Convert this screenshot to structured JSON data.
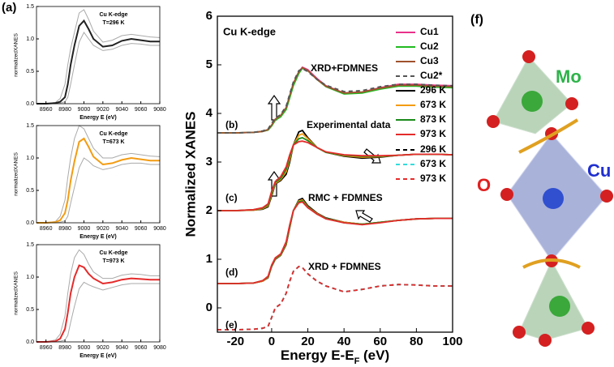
{
  "chart_data": [
    {
      "type": "line",
      "panel_label": "(a)",
      "annotations": [
        "Cu K-edge",
        "T=296 K"
      ],
      "xlabel": "Energy E (eV)",
      "ylabel": "normalizedXANES",
      "x": [
        8950,
        8960,
        8970,
        8975,
        8980,
        8983,
        8986,
        8990,
        8995,
        9000,
        9005,
        9010,
        9020,
        9030,
        9040,
        9050,
        9060,
        9070,
        9080
      ],
      "series": [
        {
          "color": "#aaaaaa",
          "values": [
            0,
            0,
            0.02,
            0.08,
            0.3,
            0.6,
            0.85,
            1.1,
            1.4,
            1.45,
            1.3,
            1.12,
            0.95,
            0.98,
            1.05,
            1.07,
            1.05,
            1.03,
            1.02
          ]
        },
        {
          "color": "#aaaaaa",
          "values": [
            0,
            0,
            0,
            0.01,
            0.03,
            0.1,
            0.3,
            0.6,
            0.95,
            1.1,
            1.0,
            0.9,
            0.82,
            0.84,
            0.9,
            0.93,
            0.92,
            0.9,
            0.9
          ]
        },
        {
          "color": "#222222",
          "values": [
            0,
            0,
            0.01,
            0.03,
            0.1,
            0.3,
            0.6,
            0.9,
            1.2,
            1.28,
            1.15,
            1.0,
            0.88,
            0.9,
            0.97,
            1.0,
            0.98,
            0.96,
            0.96
          ]
        }
      ],
      "xlim": [
        8950,
        9080
      ],
      "xticks": [
        8960,
        8980,
        9000,
        9020,
        9040,
        9060,
        9080
      ],
      "ylim": [
        0,
        1.5
      ],
      "yticks": [
        {
          "value": 0,
          "label": "0.0"
        },
        {
          "value": 0.5,
          "label": "0.5"
        },
        {
          "value": 1,
          "label": "1.0"
        },
        {
          "value": 1.5,
          "label": "1.5"
        }
      ]
    },
    {
      "type": "line",
      "annotations": [
        "Cu K-edge",
        "T=673 K"
      ],
      "xlabel": "Energy E (eV)",
      "ylabel": "normalizedXANES",
      "x": [
        8950,
        8960,
        8970,
        8975,
        8980,
        8983,
        8986,
        8990,
        8995,
        9000,
        9005,
        9010,
        9020,
        9030,
        9040,
        9050,
        9060,
        9070,
        9080
      ],
      "series": [
        {
          "color": "#aaaaaa",
          "values": [
            0,
            0,
            0.02,
            0.1,
            0.35,
            0.7,
            1.0,
            1.3,
            1.5,
            1.45,
            1.3,
            1.15,
            1.0,
            1.0,
            1.05,
            1.07,
            1.05,
            1.03,
            1.02
          ]
        },
        {
          "color": "#aaaaaa",
          "values": [
            0,
            0,
            0,
            0.01,
            0.03,
            0.1,
            0.3,
            0.55,
            0.85,
            1.0,
            0.95,
            0.88,
            0.82,
            0.85,
            0.9,
            0.92,
            0.92,
            0.9,
            0.9
          ]
        },
        {
          "color": "#f39c12",
          "values": [
            0,
            0,
            0.01,
            0.04,
            0.15,
            0.35,
            0.65,
            0.95,
            1.25,
            1.3,
            1.17,
            1.02,
            0.9,
            0.92,
            0.97,
            1.0,
            0.98,
            0.96,
            0.96
          ]
        }
      ],
      "xlim": [
        8950,
        9080
      ],
      "xticks": [
        8960,
        8980,
        9000,
        9020,
        9040,
        9060,
        9080
      ],
      "ylim": [
        0,
        1.5
      ],
      "yticks": [
        {
          "value": 0,
          "label": "0.0"
        },
        {
          "value": 0.5,
          "label": "0.5"
        },
        {
          "value": 1,
          "label": "1.0"
        },
        {
          "value": 1.5,
          "label": "1.5"
        }
      ]
    },
    {
      "type": "line",
      "annotations": [
        "Cu K-edge",
        "T=973 K"
      ],
      "xlabel": "Energy E (eV)",
      "ylabel": "normalizedXANES",
      "x": [
        8950,
        8960,
        8970,
        8975,
        8980,
        8983,
        8986,
        8990,
        8995,
        9000,
        9005,
        9010,
        9020,
        9030,
        9040,
        9050,
        9060,
        9070,
        9080
      ],
      "series": [
        {
          "color": "#aaaaaa",
          "values": [
            0,
            0,
            0.03,
            0.12,
            0.4,
            0.75,
            1.05,
            1.3,
            1.42,
            1.35,
            1.2,
            1.08,
            0.98,
            0.98,
            1.03,
            1.05,
            1.04,
            1.02,
            1.02
          ]
        },
        {
          "color": "#aaaaaa",
          "values": [
            0,
            0,
            0,
            0.01,
            0.03,
            0.1,
            0.3,
            0.55,
            0.82,
            0.92,
            0.88,
            0.85,
            0.8,
            0.84,
            0.88,
            0.9,
            0.9,
            0.9,
            0.9
          ]
        },
        {
          "color": "#e52b2b",
          "values": [
            0,
            0,
            0.01,
            0.05,
            0.2,
            0.45,
            0.75,
            1.0,
            1.18,
            1.15,
            1.05,
            0.98,
            0.9,
            0.92,
            0.96,
            0.98,
            0.97,
            0.96,
            0.96
          ]
        }
      ],
      "xlim": [
        8950,
        9080
      ],
      "xticks": [
        8960,
        8980,
        9000,
        9020,
        9040,
        9060,
        9080
      ],
      "ylim": [
        0,
        1.5
      ],
      "yticks": [
        {
          "value": 0,
          "label": "0.0"
        },
        {
          "value": 0.5,
          "label": "0.5"
        },
        {
          "value": 1,
          "label": "1.0"
        },
        {
          "value": 1.5,
          "label": "1.5"
        }
      ]
    },
    {
      "type": "line",
      "annotations": [
        "Cu K-edge",
        "XRD+FDMNES",
        "Experimental data",
        "RMC + FDMNES",
        "XRD + FDMNES",
        "(b)",
        "(c)",
        "(d)",
        "(e)"
      ],
      "xlabel": {
        "text": "Energy E-E",
        "sub": "F",
        "suffix": " (eV)"
      },
      "ylabel": "Normalized XANES",
      "x": [
        -30,
        -20,
        -10,
        -5,
        -2,
        0,
        2,
        5,
        8,
        10,
        12,
        15,
        17,
        20,
        25,
        30,
        40,
        50,
        60,
        70,
        80,
        90,
        100
      ],
      "series": [
        {
          "name": "Cu1",
          "color": "#e8308a",
          "values": [
            3.6,
            3.6,
            3.61,
            3.63,
            3.66,
            3.75,
            3.88,
            3.95,
            4.1,
            4.35,
            4.6,
            4.85,
            4.95,
            4.9,
            4.72,
            4.57,
            4.42,
            4.44,
            4.53,
            4.6,
            4.6,
            4.58,
            4.57
          ]
        },
        {
          "name": "Cu2",
          "color": "#22bb22",
          "values": [
            3.6,
            3.6,
            3.61,
            3.63,
            3.66,
            3.74,
            3.86,
            3.93,
            4.08,
            4.32,
            4.57,
            4.82,
            4.93,
            4.88,
            4.7,
            4.55,
            4.4,
            4.42,
            4.5,
            4.56,
            4.56,
            4.54,
            4.53
          ]
        },
        {
          "name": "Cu3",
          "color": "#a0522d",
          "values": [
            3.6,
            3.6,
            3.61,
            3.63,
            3.67,
            3.76,
            3.88,
            3.96,
            4.12,
            4.37,
            4.62,
            4.86,
            4.94,
            4.88,
            4.7,
            4.56,
            4.42,
            4.44,
            4.52,
            4.58,
            4.58,
            4.56,
            4.55
          ]
        },
        {
          "name": "Cu2*",
          "color": "#555555",
          "dash": true,
          "values": [
            3.6,
            3.6,
            3.61,
            3.64,
            3.68,
            3.8,
            3.9,
            3.98,
            4.15,
            4.4,
            4.65,
            4.88,
            4.92,
            4.86,
            4.7,
            4.58,
            4.45,
            4.47,
            4.55,
            4.6,
            4.6,
            4.58,
            4.57
          ]
        },
        {
          "name": "296 K",
          "color": "#000000",
          "values": [
            2.0,
            2.0,
            2.01,
            2.03,
            2.08,
            2.3,
            2.55,
            2.62,
            2.75,
            3.0,
            3.35,
            3.62,
            3.65,
            3.5,
            3.3,
            3.2,
            3.12,
            3.08,
            3.1,
            3.14,
            3.16,
            3.16,
            3.15
          ]
        },
        {
          "name": "673 K",
          "color": "#f39c12",
          "values": [
            2.0,
            2.0,
            2.01,
            2.04,
            2.1,
            2.33,
            2.56,
            2.64,
            2.8,
            3.05,
            3.35,
            3.55,
            3.58,
            3.48,
            3.3,
            3.2,
            3.13,
            3.1,
            3.11,
            3.14,
            3.16,
            3.16,
            3.15
          ]
        },
        {
          "name": "873 K",
          "color": "#1a8a1a",
          "values": [
            2.0,
            2.0,
            2.02,
            2.05,
            2.12,
            2.36,
            2.58,
            2.66,
            2.85,
            3.1,
            3.35,
            3.48,
            3.5,
            3.44,
            3.3,
            3.2,
            3.14,
            3.12,
            3.12,
            3.14,
            3.16,
            3.16,
            3.15
          ]
        },
        {
          "name": "973 K",
          "color": "#e52b2b",
          "values": [
            2.0,
            2.0,
            2.02,
            2.06,
            2.14,
            2.4,
            2.6,
            2.7,
            2.9,
            3.15,
            3.35,
            3.42,
            3.43,
            3.4,
            3.3,
            3.21,
            3.15,
            3.13,
            3.13,
            3.14,
            3.16,
            3.16,
            3.15
          ]
        },
        {
          "color": "#000000",
          "values": [
            0.5,
            0.5,
            0.51,
            0.55,
            0.62,
            0.85,
            1.0,
            1.08,
            1.3,
            1.65,
            2.0,
            2.22,
            2.25,
            2.1,
            1.95,
            1.85,
            1.76,
            1.72,
            1.76,
            1.8,
            1.83,
            1.84,
            1.84
          ]
        },
        {
          "color": "#f39c12",
          "values": [
            0.5,
            0.5,
            0.51,
            0.55,
            0.63,
            0.86,
            1.01,
            1.09,
            1.32,
            1.67,
            2.0,
            2.2,
            2.22,
            2.08,
            1.94,
            1.84,
            1.76,
            1.72,
            1.76,
            1.8,
            1.83,
            1.84,
            1.84
          ]
        },
        {
          "color": "#1a8a1a",
          "values": [
            0.5,
            0.5,
            0.51,
            0.56,
            0.64,
            0.87,
            1.02,
            1.1,
            1.34,
            1.69,
            2.0,
            2.18,
            2.2,
            2.07,
            1.93,
            1.84,
            1.75,
            1.72,
            1.76,
            1.8,
            1.83,
            1.84,
            1.84
          ]
        },
        {
          "color": "#e52b2b",
          "values": [
            0.5,
            0.5,
            0.51,
            0.56,
            0.65,
            0.88,
            1.03,
            1.11,
            1.36,
            1.71,
            2.0,
            2.16,
            2.18,
            2.06,
            1.93,
            1.83,
            1.75,
            1.71,
            1.75,
            1.8,
            1.83,
            1.84,
            1.84
          ]
        },
        {
          "name": "296 K",
          "color": "#000000",
          "dash": true,
          "values": [
            -0.45,
            -0.45,
            -0.44,
            -0.42,
            -0.38,
            -0.2,
            0.0,
            0.08,
            0.3,
            0.55,
            0.75,
            0.85,
            0.83,
            0.7,
            0.55,
            0.45,
            0.33,
            0.38,
            0.45,
            0.48,
            0.47,
            0.45,
            0.45
          ]
        },
        {
          "name": "673 K",
          "color": "#33dddd",
          "dash": true,
          "values": [
            -0.45,
            -0.45,
            -0.44,
            -0.42,
            -0.38,
            -0.2,
            0.0,
            0.08,
            0.3,
            0.55,
            0.75,
            0.85,
            0.83,
            0.7,
            0.55,
            0.45,
            0.33,
            0.38,
            0.45,
            0.48,
            0.47,
            0.45,
            0.45
          ]
        },
        {
          "name": "973 K",
          "color": "#e52b2b",
          "dash": true,
          "values": [
            -0.45,
            -0.45,
            -0.44,
            -0.42,
            -0.38,
            -0.2,
            0.0,
            0.08,
            0.3,
            0.55,
            0.75,
            0.85,
            0.83,
            0.7,
            0.55,
            0.45,
            0.33,
            0.38,
            0.45,
            0.48,
            0.47,
            0.45,
            0.45
          ]
        }
      ],
      "xlim": [
        -30,
        100
      ],
      "xticks": [
        -20,
        0,
        20,
        40,
        60,
        80,
        100
      ],
      "ylim": [
        -0.5,
        6
      ],
      "yticks": [
        0,
        1,
        2,
        3,
        4,
        5,
        6
      ]
    }
  ],
  "structure": {
    "panel_label": "(f)",
    "labels": [
      "Mo",
      "Cu",
      "O"
    ]
  }
}
